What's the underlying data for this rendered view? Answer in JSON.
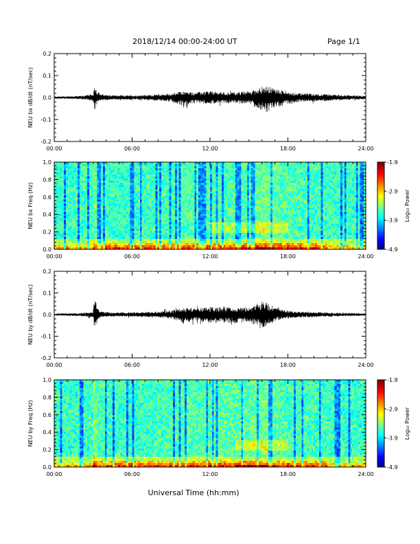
{
  "header": {
    "title": "2018/12/14  00:00-24:00 UT",
    "page": "Page 1/1"
  },
  "chart_data": [
    {
      "type": "line",
      "ylabel": "NEU bx dB/dt (nT/sec)",
      "xlim": [
        0,
        24
      ],
      "ylim": [
        -0.2,
        0.2
      ],
      "y_ticks": [
        "0.2",
        "0.1",
        "0.0",
        "-0.1",
        "-0.2"
      ],
      "x_ticks": [
        "00:00",
        "06:00",
        "12:00",
        "18:00",
        "24:00"
      ],
      "envelope": {
        "hours": [
          0,
          1,
          2,
          3,
          3.1,
          3.3,
          3.6,
          4,
          5,
          6,
          7,
          8,
          9,
          9.5,
          10,
          10.5,
          11,
          12,
          13,
          14,
          15,
          15.5,
          16,
          16.5,
          17,
          17.5,
          18,
          19,
          20,
          21,
          22,
          23,
          24
        ],
        "upper": [
          0.005,
          0.006,
          0.008,
          0.015,
          0.065,
          0.03,
          0.015,
          0.012,
          0.01,
          0.01,
          0.012,
          0.015,
          0.018,
          0.025,
          0.03,
          0.025,
          0.025,
          0.03,
          0.025,
          0.025,
          0.03,
          0.04,
          0.05,
          0.05,
          0.04,
          0.035,
          0.025,
          0.02,
          0.018,
          0.015,
          0.012,
          0.01,
          0.008
        ],
        "lower": [
          -0.005,
          -0.006,
          -0.008,
          -0.015,
          -0.07,
          -0.03,
          -0.015,
          -0.012,
          -0.01,
          -0.01,
          -0.012,
          -0.015,
          -0.02,
          -0.03,
          -0.04,
          -0.03,
          -0.025,
          -0.03,
          -0.025,
          -0.025,
          -0.03,
          -0.045,
          -0.06,
          -0.07,
          -0.05,
          -0.04,
          -0.03,
          -0.02,
          -0.018,
          -0.015,
          -0.012,
          -0.01,
          -0.008
        ]
      }
    },
    {
      "type": "heatmap",
      "ylabel": "NEU bx Freq (Hz)",
      "xlim": [
        0,
        24
      ],
      "ylim": [
        0,
        1.0
      ],
      "y_ticks": [
        "1.0",
        "0.8",
        "0.6",
        "0.4",
        "0.2",
        "0.0"
      ],
      "x_ticks": [
        "00:00",
        "06:00",
        "12:00",
        "18:00",
        "24:00"
      ],
      "colorbar": {
        "label": "Log₁₀ Power",
        "ticks": [
          "-1.9",
          "-2.9",
          "-3.9",
          "-4.9"
        ],
        "range": [
          -4.9,
          -1.9
        ]
      },
      "features": {
        "band_0p25hz_hours": [
          12,
          18
        ],
        "lowfreq_enhancement_hours": [
          3,
          21
        ]
      }
    },
    {
      "type": "line",
      "ylabel": "NEU by dB/dt (nT/sec)",
      "xlim": [
        0,
        24
      ],
      "ylim": [
        -0.2,
        0.2
      ],
      "y_ticks": [
        "0.2",
        "0.1",
        "0.0",
        "-0.1",
        "-0.2"
      ],
      "x_ticks": [
        "00:00",
        "06:00",
        "12:00",
        "18:00",
        "24:00"
      ],
      "envelope": {
        "hours": [
          0,
          1,
          2,
          3,
          3.1,
          3.3,
          3.6,
          4,
          5,
          6,
          7,
          8,
          9,
          9.5,
          10,
          10.5,
          11,
          12,
          13,
          14,
          15,
          15.5,
          16,
          16.5,
          17,
          17.5,
          18,
          19,
          20,
          21,
          22,
          23,
          24
        ],
        "upper": [
          0.005,
          0.006,
          0.008,
          0.015,
          0.09,
          0.03,
          0.015,
          0.012,
          0.01,
          0.01,
          0.012,
          0.015,
          0.02,
          0.025,
          0.03,
          0.03,
          0.03,
          0.035,
          0.04,
          0.035,
          0.035,
          0.05,
          0.065,
          0.05,
          0.035,
          0.025,
          0.018,
          0.015,
          0.012,
          0.01,
          0.008,
          0.007,
          0.006
        ],
        "lower": [
          -0.005,
          -0.006,
          -0.008,
          -0.015,
          -0.07,
          -0.03,
          -0.015,
          -0.012,
          -0.01,
          -0.01,
          -0.012,
          -0.015,
          -0.02,
          -0.03,
          -0.045,
          -0.035,
          -0.03,
          -0.04,
          -0.04,
          -0.04,
          -0.035,
          -0.05,
          -0.07,
          -0.05,
          -0.035,
          -0.025,
          -0.018,
          -0.015,
          -0.012,
          -0.01,
          -0.008,
          -0.007,
          -0.006
        ]
      }
    },
    {
      "type": "heatmap",
      "ylabel": "NEU by Freq (Hz)",
      "xlim": [
        0,
        24
      ],
      "ylim": [
        0,
        1.0
      ],
      "y_ticks": [
        "1.0",
        "0.8",
        "0.6",
        "0.4",
        "0.2",
        "0.0"
      ],
      "x_ticks": [
        "00:00",
        "06:00",
        "12:00",
        "18:00",
        "24:00"
      ],
      "colorbar": {
        "label": "Log₁₀ Power",
        "ticks": [
          "-1.9",
          "-2.9",
          "-3.9",
          "-4.9"
        ],
        "range": [
          -4.9,
          -1.9
        ]
      },
      "features": {
        "band_0p25hz_hours": [
          14,
          18
        ],
        "lowfreq_enhancement_hours": [
          3,
          21
        ]
      }
    }
  ],
  "xlabel": "Universal Time (hh:mm)"
}
